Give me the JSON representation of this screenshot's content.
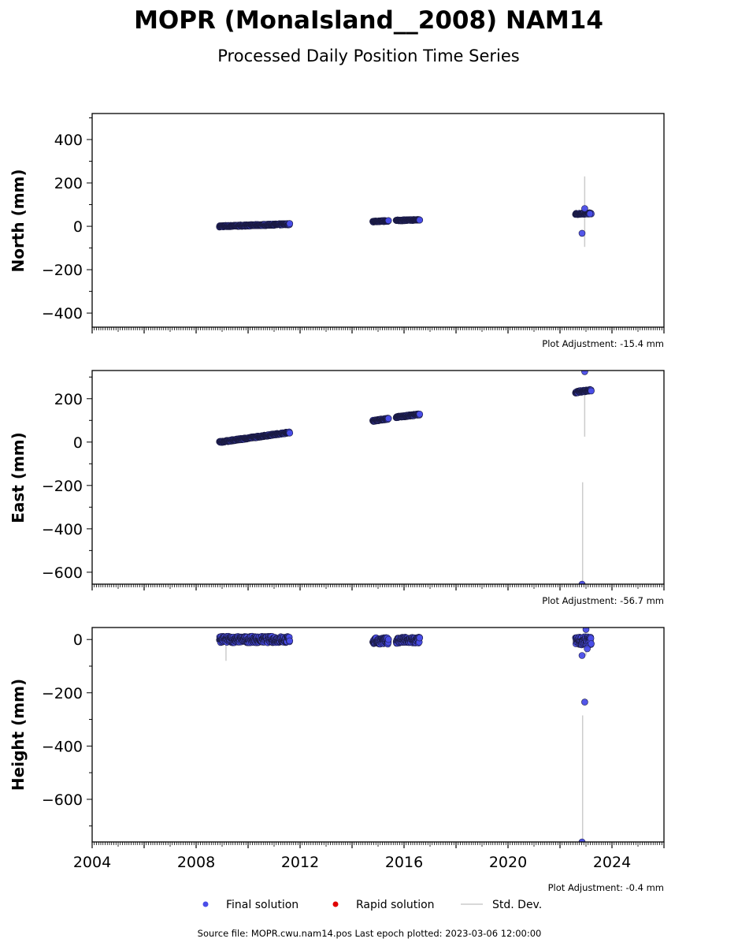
{
  "title": "MOPR (MonaIsland__2008) NAM14",
  "subtitle": "Processed Daily Position Time Series",
  "footer": "Source file: MOPR.cwu.nam14.pos  Last epoch plotted: 2023-03-06 12:00:00",
  "colors": {
    "final": "#4a4de8",
    "rapid": "#e00000",
    "std": "#cccccc",
    "edge": "#1a1a40"
  },
  "legend": {
    "final": "Final solution",
    "rapid": "Rapid solution",
    "std": "Std. Dev."
  },
  "chart_data": [
    {
      "type": "scatter",
      "ylabel": "North (mm)",
      "adjustment": "Plot Adjustment: -15.4 mm",
      "xlim": [
        2004,
        2026
      ],
      "ylim": [
        -465,
        520
      ],
      "yticks": [
        -400,
        -200,
        0,
        200,
        400
      ],
      "segments": [
        {
          "x0": 2008.9,
          "x1": 2011.6,
          "y0": 0,
          "y1": 10,
          "noise": 3
        },
        {
          "x0": 2014.8,
          "x1": 2015.4,
          "y0": 22,
          "y1": 25,
          "noise": 2
        },
        {
          "x0": 2015.7,
          "x1": 2016.6,
          "y0": 27,
          "y1": 30,
          "noise": 2
        },
        {
          "x0": 2022.6,
          "x1": 2023.2,
          "y0": 57,
          "y1": 60,
          "noise": 3
        }
      ],
      "outliers": [
        [
          2022.85,
          -32
        ],
        [
          2022.95,
          82
        ],
        [
          2023.15,
          58
        ]
      ],
      "stddev": [
        [
          2022.95,
          -95,
          230
        ]
      ]
    },
    {
      "type": "scatter",
      "ylabel": "East (mm)",
      "adjustment": "Plot Adjustment: -56.7 mm",
      "xlim": [
        2004,
        2026
      ],
      "ylim": [
        -655,
        330
      ],
      "yticks": [
        -600,
        -400,
        -200,
        0,
        200
      ],
      "segments": [
        {
          "x0": 2008.9,
          "x1": 2011.6,
          "y0": 0,
          "y1": 45,
          "noise": 3
        },
        {
          "x0": 2014.8,
          "x1": 2015.4,
          "y0": 98,
          "y1": 108,
          "noise": 3
        },
        {
          "x0": 2015.7,
          "x1": 2016.6,
          "y0": 115,
          "y1": 128,
          "noise": 3
        },
        {
          "x0": 2022.6,
          "x1": 2023.2,
          "y0": 230,
          "y1": 240,
          "noise": 4
        }
      ],
      "outliers": [
        [
          2022.95,
          325
        ],
        [
          2022.85,
          -655
        ]
      ],
      "stddev": [
        [
          2022.95,
          25,
          240
        ],
        [
          2022.87,
          -655,
          -185
        ]
      ]
    },
    {
      "type": "scatter",
      "ylabel": "Height (mm)",
      "adjustment": "Plot Adjustment: -0.4 mm",
      "xlim": [
        2004,
        2026
      ],
      "ylim": [
        -760,
        45
      ],
      "yticks": [
        -600,
        -400,
        -200,
        0
      ],
      "xticks": [
        2004,
        2008,
        2012,
        2016,
        2020,
        2024
      ],
      "segments": [
        {
          "x0": 2008.9,
          "x1": 2011.6,
          "y0": 0,
          "y1": 0,
          "noise": 12
        },
        {
          "x0": 2014.8,
          "x1": 2015.4,
          "y0": -5,
          "y1": -5,
          "noise": 12
        },
        {
          "x0": 2015.7,
          "x1": 2016.6,
          "y0": -3,
          "y1": -3,
          "noise": 12
        },
        {
          "x0": 2022.6,
          "x1": 2023.2,
          "y0": -5,
          "y1": -5,
          "noise": 15
        }
      ],
      "outliers": [
        [
          2023.0,
          38
        ],
        [
          2022.85,
          -60
        ],
        [
          2023.05,
          -35
        ],
        [
          2022.95,
          -235
        ],
        [
          2022.85,
          -760
        ]
      ],
      "stddev": [
        [
          2009.15,
          -80,
          10
        ],
        [
          2023.0,
          -60,
          40
        ],
        [
          2022.87,
          -760,
          -285
        ]
      ]
    }
  ]
}
